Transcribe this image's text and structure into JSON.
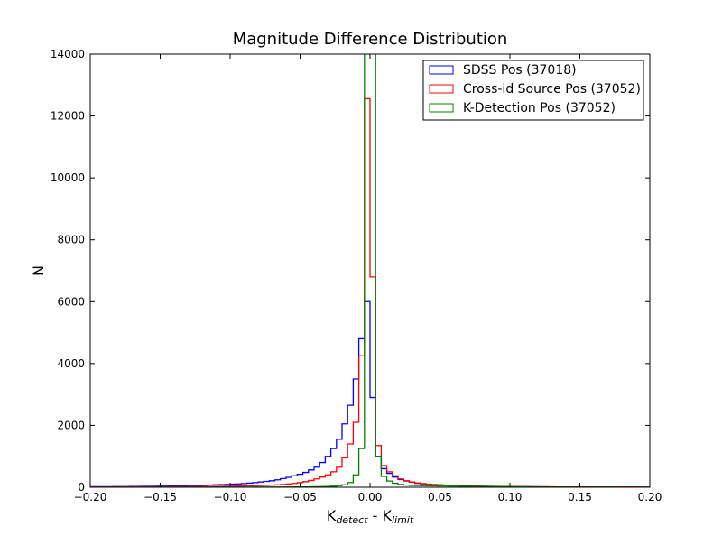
{
  "chart_data": {
    "type": "histogram-step",
    "title": "Magnitude Difference Distribution",
    "xlabel": {
      "base1": "K",
      "sub1": "detect",
      "mid": " - K",
      "sub2": "limit"
    },
    "ylabel": "N",
    "xlim": [
      -0.2,
      0.2
    ],
    "ylim": [
      0,
      14000
    ],
    "xticks": [
      -0.2,
      -0.15,
      -0.1,
      -0.05,
      0.0,
      0.05,
      0.1,
      0.15,
      0.2
    ],
    "xtick_labels": [
      "−0.20",
      "−0.15",
      "−0.10",
      "−0.05",
      "0.00",
      "0.05",
      "0.10",
      "0.15",
      "0.20"
    ],
    "yticks": [
      0,
      2000,
      4000,
      6000,
      8000,
      10000,
      12000,
      14000
    ],
    "ytick_labels": [
      "0",
      "2000",
      "4000",
      "6000",
      "8000",
      "10000",
      "12000",
      "14000"
    ],
    "bin_start": -0.2,
    "bin_width": 0.004,
    "legend_position": "top-right",
    "series": [
      {
        "name": "SDSS Pos (37018)",
        "color": "#0000ff",
        "values": [
          16,
          17,
          18,
          19,
          20,
          21,
          22,
          24,
          26,
          28,
          30,
          32,
          34,
          37,
          40,
          43,
          46,
          50,
          55,
          60,
          66,
          72,
          78,
          85,
          92,
          100,
          110,
          120,
          135,
          150,
          170,
          190,
          210,
          240,
          280,
          320,
          370,
          420,
          480,
          560,
          650,
          800,
          1000,
          1250,
          1550,
          2050,
          2650,
          3500,
          4800,
          6000,
          2900,
          1000,
          600,
          450,
          330,
          250,
          200,
          160,
          130,
          110,
          95,
          85,
          75,
          68,
          62,
          56,
          50,
          45,
          40,
          36,
          32,
          29,
          26,
          24,
          22,
          20,
          18,
          17,
          16,
          15,
          14,
          13,
          12,
          11,
          10,
          10,
          9,
          9,
          8,
          8,
          7,
          7,
          6,
          6,
          6,
          5,
          5,
          5,
          4,
          4
        ]
      },
      {
        "name": "Cross-id Source Pos (37052)",
        "color": "#ff0000",
        "values": [
          6,
          7,
          7,
          8,
          8,
          9,
          9,
          10,
          10,
          11,
          12,
          13,
          14,
          15,
          16,
          17,
          18,
          19,
          20,
          22,
          24,
          26,
          28,
          30,
          32,
          35,
          38,
          41,
          45,
          50,
          55,
          62,
          70,
          80,
          90,
          105,
          125,
          150,
          180,
          220,
          270,
          330,
          400,
          500,
          650,
          950,
          1400,
          2100,
          4250,
          12560,
          6800,
          1350,
          700,
          500,
          370,
          270,
          210,
          170,
          140,
          120,
          100,
          88,
          78,
          70,
          62,
          55,
          50,
          45,
          40,
          36,
          33,
          30,
          28,
          26,
          24,
          22,
          20,
          18,
          17,
          16,
          15,
          14,
          13,
          12,
          11,
          10,
          10,
          9,
          9,
          8,
          8,
          7,
          7,
          6,
          6,
          5,
          5,
          5,
          4,
          4
        ]
      },
      {
        "name": "K-Detection Pos (37052)",
        "color": "#008000",
        "values": [
          1,
          1,
          1,
          1,
          1,
          1,
          1,
          1,
          1,
          2,
          2,
          2,
          2,
          2,
          2,
          2,
          2,
          2,
          2,
          3,
          3,
          3,
          3,
          3,
          3,
          4,
          4,
          4,
          4,
          5,
          5,
          5,
          6,
          6,
          7,
          8,
          9,
          10,
          11,
          13,
          16,
          20,
          25,
          35,
          50,
          80,
          150,
          400,
          1250,
          16000,
          15500,
          1000,
          350,
          200,
          130,
          90,
          70,
          60,
          55,
          50,
          48,
          45,
          42,
          40,
          38,
          36,
          34,
          32,
          30,
          28,
          26,
          24,
          22,
          20,
          18,
          16,
          14,
          12,
          10,
          9,
          8,
          7,
          6,
          5,
          5,
          4,
          4,
          3,
          3,
          3,
          2,
          2,
          2,
          2,
          1,
          1,
          1,
          1,
          1,
          1
        ]
      }
    ]
  }
}
